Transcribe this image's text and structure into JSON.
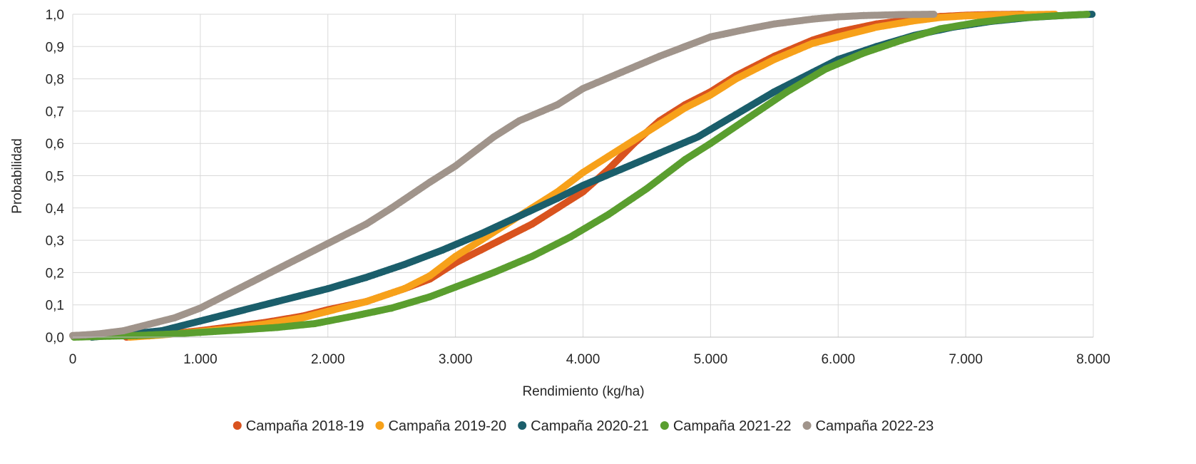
{
  "chart_data": {
    "type": "scatter",
    "title": "",
    "xlabel": "Rendimiento (kg/ha)",
    "ylabel": "Probabilidad",
    "xlim": [
      0,
      8000
    ],
    "ylim": [
      0,
      1
    ],
    "x_ticks": [
      0,
      1000,
      2000,
      3000,
      4000,
      5000,
      6000,
      7000,
      8000
    ],
    "x_tick_labels": [
      "0",
      "1.000",
      "2.000",
      "3.000",
      "4.000",
      "5.000",
      "6.000",
      "7.000",
      "8.000"
    ],
    "y_ticks": [
      0,
      0.1,
      0.2,
      0.3,
      0.4,
      0.5,
      0.6,
      0.7,
      0.8,
      0.9,
      1.0
    ],
    "y_tick_labels": [
      "0,0",
      "0,1",
      "0,2",
      "0,3",
      "0,4",
      "0,5",
      "0,6",
      "0,7",
      "0,8",
      "0,9",
      "1,0"
    ],
    "grid": true,
    "legend_position": "bottom",
    "series": [
      {
        "name": "Campaña 2018-19",
        "color": "#D9531E",
        "x": [
          420,
          600,
          800,
          1000,
          1200,
          1500,
          1800,
          2000,
          2300,
          2600,
          2800,
          3000,
          3200,
          3400,
          3600,
          3800,
          4000,
          4200,
          4400,
          4600,
          4800,
          5000,
          5200,
          5500,
          5800,
          6000,
          6300,
          6600,
          6800,
          7000,
          7200,
          7450
        ],
        "y": [
          0.0,
          0.005,
          0.012,
          0.02,
          0.03,
          0.045,
          0.065,
          0.085,
          0.11,
          0.15,
          0.18,
          0.23,
          0.27,
          0.31,
          0.35,
          0.4,
          0.45,
          0.52,
          0.6,
          0.67,
          0.72,
          0.76,
          0.81,
          0.87,
          0.92,
          0.945,
          0.97,
          0.985,
          0.993,
          0.997,
          0.999,
          1.0
        ]
      },
      {
        "name": "Campaña 2019-20",
        "color": "#F7A11A",
        "x": [
          450,
          600,
          800,
          1000,
          1200,
          1500,
          1800,
          2000,
          2300,
          2600,
          2800,
          3000,
          3200,
          3400,
          3600,
          3800,
          4000,
          4200,
          4400,
          4600,
          4800,
          5000,
          5200,
          5500,
          5800,
          6000,
          6300,
          6600,
          6800,
          7000,
          7300,
          7700
        ],
        "y": [
          0.0,
          0.004,
          0.01,
          0.017,
          0.025,
          0.04,
          0.06,
          0.08,
          0.11,
          0.15,
          0.19,
          0.25,
          0.3,
          0.35,
          0.4,
          0.45,
          0.51,
          0.56,
          0.61,
          0.66,
          0.71,
          0.75,
          0.8,
          0.86,
          0.91,
          0.93,
          0.96,
          0.98,
          0.99,
          0.995,
          0.998,
          1.0
        ]
      },
      {
        "name": "Campaña 2020-21",
        "color": "#1B5E6B",
        "x": [
          150,
          300,
          500,
          700,
          1000,
          1300,
          1600,
          2000,
          2300,
          2600,
          2900,
          3200,
          3500,
          3800,
          4000,
          4300,
          4600,
          4900,
          5200,
          5500,
          5800,
          6000,
          6300,
          6600,
          6900,
          7200,
          7500,
          7800,
          7990
        ],
        "y": [
          0.0,
          0.005,
          0.012,
          0.02,
          0.05,
          0.08,
          0.11,
          0.15,
          0.185,
          0.225,
          0.27,
          0.32,
          0.375,
          0.43,
          0.47,
          0.52,
          0.57,
          0.62,
          0.69,
          0.76,
          0.82,
          0.86,
          0.9,
          0.935,
          0.96,
          0.978,
          0.99,
          0.997,
          1.0
        ]
      },
      {
        "name": "Campaña 2021-22",
        "color": "#5A9E2F",
        "x": [
          10,
          500,
          800,
          1000,
          1300,
          1600,
          1900,
          2200,
          2500,
          2800,
          3000,
          3300,
          3600,
          3900,
          4200,
          4500,
          4800,
          5000,
          5300,
          5600,
          5900,
          6200,
          6500,
          6800,
          7100,
          7400,
          7700,
          7950
        ],
        "y": [
          0.0,
          0.005,
          0.01,
          0.015,
          0.022,
          0.03,
          0.042,
          0.065,
          0.09,
          0.125,
          0.155,
          0.2,
          0.25,
          0.31,
          0.38,
          0.46,
          0.55,
          0.6,
          0.68,
          0.76,
          0.83,
          0.88,
          0.92,
          0.955,
          0.975,
          0.988,
          0.995,
          1.0
        ]
      },
      {
        "name": "Campaña 2022-23",
        "color": "#A0948B",
        "x": [
          0,
          100,
          200,
          300,
          400,
          600,
          800,
          1000,
          1200,
          1500,
          1800,
          2000,
          2300,
          2500,
          2800,
          3000,
          3300,
          3500,
          3800,
          4000,
          4300,
          4600,
          4800,
          5000,
          5300,
          5500,
          5800,
          6000,
          6200,
          6500,
          6750
        ],
        "y": [
          0.005,
          0.007,
          0.01,
          0.015,
          0.02,
          0.04,
          0.06,
          0.09,
          0.13,
          0.19,
          0.25,
          0.29,
          0.35,
          0.4,
          0.48,
          0.53,
          0.62,
          0.67,
          0.72,
          0.77,
          0.82,
          0.87,
          0.9,
          0.93,
          0.955,
          0.97,
          0.985,
          0.992,
          0.996,
          0.999,
          1.0
        ]
      }
    ]
  }
}
